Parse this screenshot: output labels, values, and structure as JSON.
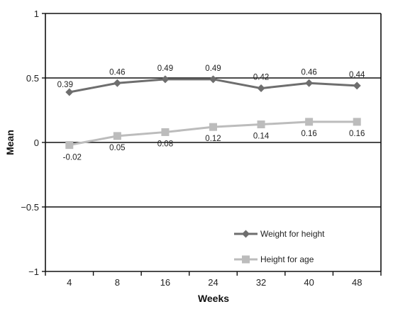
{
  "chart_data": {
    "type": "line",
    "title": "",
    "xlabel": "Weeks",
    "ylabel": "Mean",
    "categories": [
      "4",
      "8",
      "16",
      "24",
      "32",
      "40",
      "48"
    ],
    "ylim": [
      -1,
      1
    ],
    "yticks": [
      "1",
      "0.5",
      "0",
      "−0.5",
      "−1"
    ],
    "ytick_values": [
      1,
      0.5,
      0,
      -0.5,
      -1
    ],
    "grid": "horizontal at 0.5, 0, -0.5",
    "legend_position": "bottom-right",
    "series": [
      {
        "name": "Weight for height",
        "marker": "diamond",
        "color": "#6e6e6e",
        "values": [
          0.39,
          0.46,
          0.49,
          0.49,
          0.42,
          0.46,
          0.44
        ],
        "labels": [
          "0.39",
          "0.46",
          "0.49",
          "0.49",
          "0.42",
          "0.46",
          "0.44"
        ]
      },
      {
        "name": "Height for age",
        "marker": "square",
        "color": "#bcbcbc",
        "values": [
          -0.02,
          0.05,
          0.08,
          0.12,
          0.14,
          0.16,
          0.16
        ],
        "labels": [
          "-0.02",
          "0.05",
          "0.08",
          "0.12",
          "0.14",
          "0.16",
          "0.16"
        ]
      }
    ]
  }
}
